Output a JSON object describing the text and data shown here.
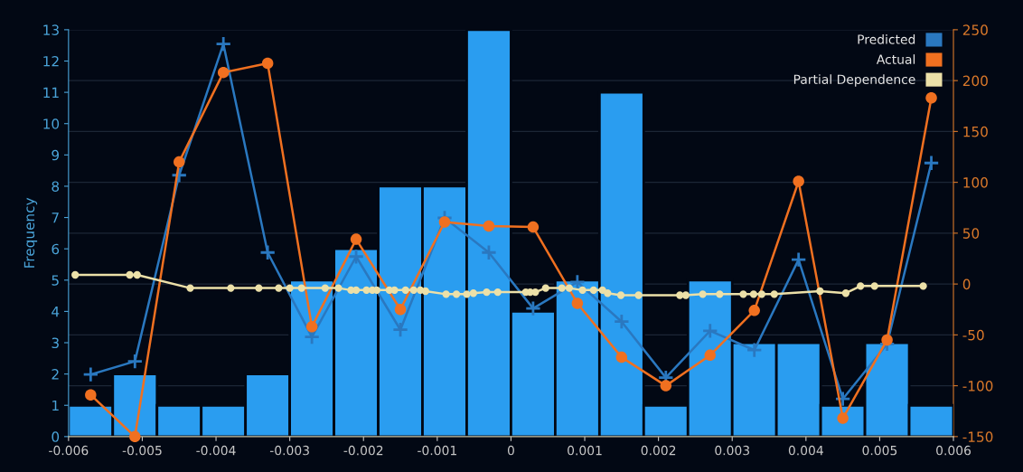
{
  "chart_data": {
    "type": "histogram",
    "ylabel": "Frequency",
    "bins": [
      -0.006,
      -0.0054,
      -0.0048,
      -0.0042,
      -0.0036,
      -0.003,
      -0.0024,
      -0.0018,
      -0.0012,
      -0.0006,
      0,
      0.0006,
      0.0012,
      0.0018,
      0.0024,
      0.003,
      0.0036,
      0.0042,
      0.0048,
      0.0054,
      0.006
    ],
    "values": [
      1,
      2,
      1,
      1,
      2,
      5,
      6,
      8,
      8,
      13,
      4,
      5,
      11,
      1,
      5,
      3,
      3,
      1,
      3,
      1
    ],
    "color": "#2a9df0",
    "xlim": [
      -0.006,
      0.006
    ],
    "xticks": [
      -0.006,
      -0.005,
      -0.004,
      -0.003,
      -0.002,
      -0.001,
      0,
      0.001,
      0.002,
      0.003,
      0.004,
      0.005,
      0.006
    ],
    "ylim": [
      0,
      13
    ],
    "yticks": [
      0,
      1,
      2,
      3,
      4,
      5,
      6,
      7,
      8,
      9,
      10,
      11,
      12,
      13
    ],
    "y2lim": [
      -150,
      250
    ],
    "y2ticks": [
      -150,
      -100,
      -50,
      0,
      50,
      100,
      150,
      200,
      250
    ],
    "grid": "y2",
    "legend": "top right",
    "series": [
      {
        "name": "Predicted",
        "type": "line",
        "axis": "y2",
        "color": "#2a78c0",
        "marker": "cross",
        "x": [
          -0.0057,
          -0.0051,
          -0.0045,
          -0.0039,
          -0.0033,
          -0.0027,
          -0.0021,
          -0.0015,
          -0.0009,
          -0.0003,
          0.0003,
          0.0009,
          0.0015,
          0.0021,
          0.0027,
          0.0033,
          0.0039,
          0.0045,
          0.0051,
          0.0057
        ],
        "values": [
          -89,
          -76,
          107,
          236,
          31,
          -52,
          27,
          -45,
          65,
          31,
          -24,
          2,
          -37,
          -92,
          -46,
          -65,
          24,
          -113,
          -59,
          119
        ]
      },
      {
        "name": "Actual",
        "type": "line",
        "axis": "y2",
        "color": "#f07020",
        "marker": "circle",
        "x": [
          -0.0057,
          -0.0051,
          -0.0045,
          -0.0039,
          -0.0033,
          -0.0027,
          -0.0021,
          -0.0015,
          -0.0009,
          -0.0003,
          0.0003,
          0.0009,
          0.0015,
          0.0021,
          0.0027,
          0.0033,
          0.0039,
          0.0045,
          0.0051,
          0.0057
        ],
        "values": [
          -109,
          -150,
          120,
          208,
          217,
          -42,
          44,
          -25,
          61,
          57,
          56,
          -19,
          -72,
          -100,
          -70,
          -26,
          101,
          -132,
          -55,
          183
        ]
      },
      {
        "name": "Partial Dependence",
        "type": "line",
        "axis": "y2",
        "color": "#ece0a8",
        "marker": "circle",
        "x": [
          -0.00591,
          -0.00517,
          -0.00507,
          -0.00435,
          -0.0038,
          -0.00342,
          -0.00315,
          -0.003,
          -0.00284,
          -0.00252,
          -0.00234,
          -0.00217,
          -0.0021,
          -0.00196,
          -0.00188,
          -0.00182,
          -0.00165,
          -0.00158,
          -0.00143,
          -0.00132,
          -0.00123,
          -0.00116,
          -0.00088,
          -0.00074,
          -0.0006,
          -0.00051,
          -0.00033,
          -0.00018,
          0.0002,
          0.00026,
          0.00033,
          0.00047,
          0.00069,
          0.00079,
          0.00097,
          0.00112,
          0.00124,
          0.00131,
          0.00149,
          0.00173,
          0.00229,
          0.00237,
          0.0026,
          0.00283,
          0.00315,
          0.00329,
          0.0034,
          0.00357,
          0.00419,
          0.00454,
          0.00474,
          0.00493,
          0.00559
        ],
        "values": [
          9,
          9,
          9,
          -4,
          -4,
          -4,
          -4,
          -4,
          -4,
          -4,
          -4,
          -6,
          -6,
          -6,
          -6,
          -6,
          -6,
          -6,
          -6,
          -6,
          -6,
          -7,
          -10,
          -10,
          -10,
          -9,
          -8,
          -8,
          -8,
          -8,
          -8,
          -4,
          -4,
          -4,
          -6,
          -6,
          -6,
          -9,
          -11,
          -11,
          -11,
          -11,
          -10,
          -10,
          -10,
          -10,
          -10,
          -10,
          -7,
          -9,
          -2,
          -2,
          -2
        ]
      }
    ]
  }
}
